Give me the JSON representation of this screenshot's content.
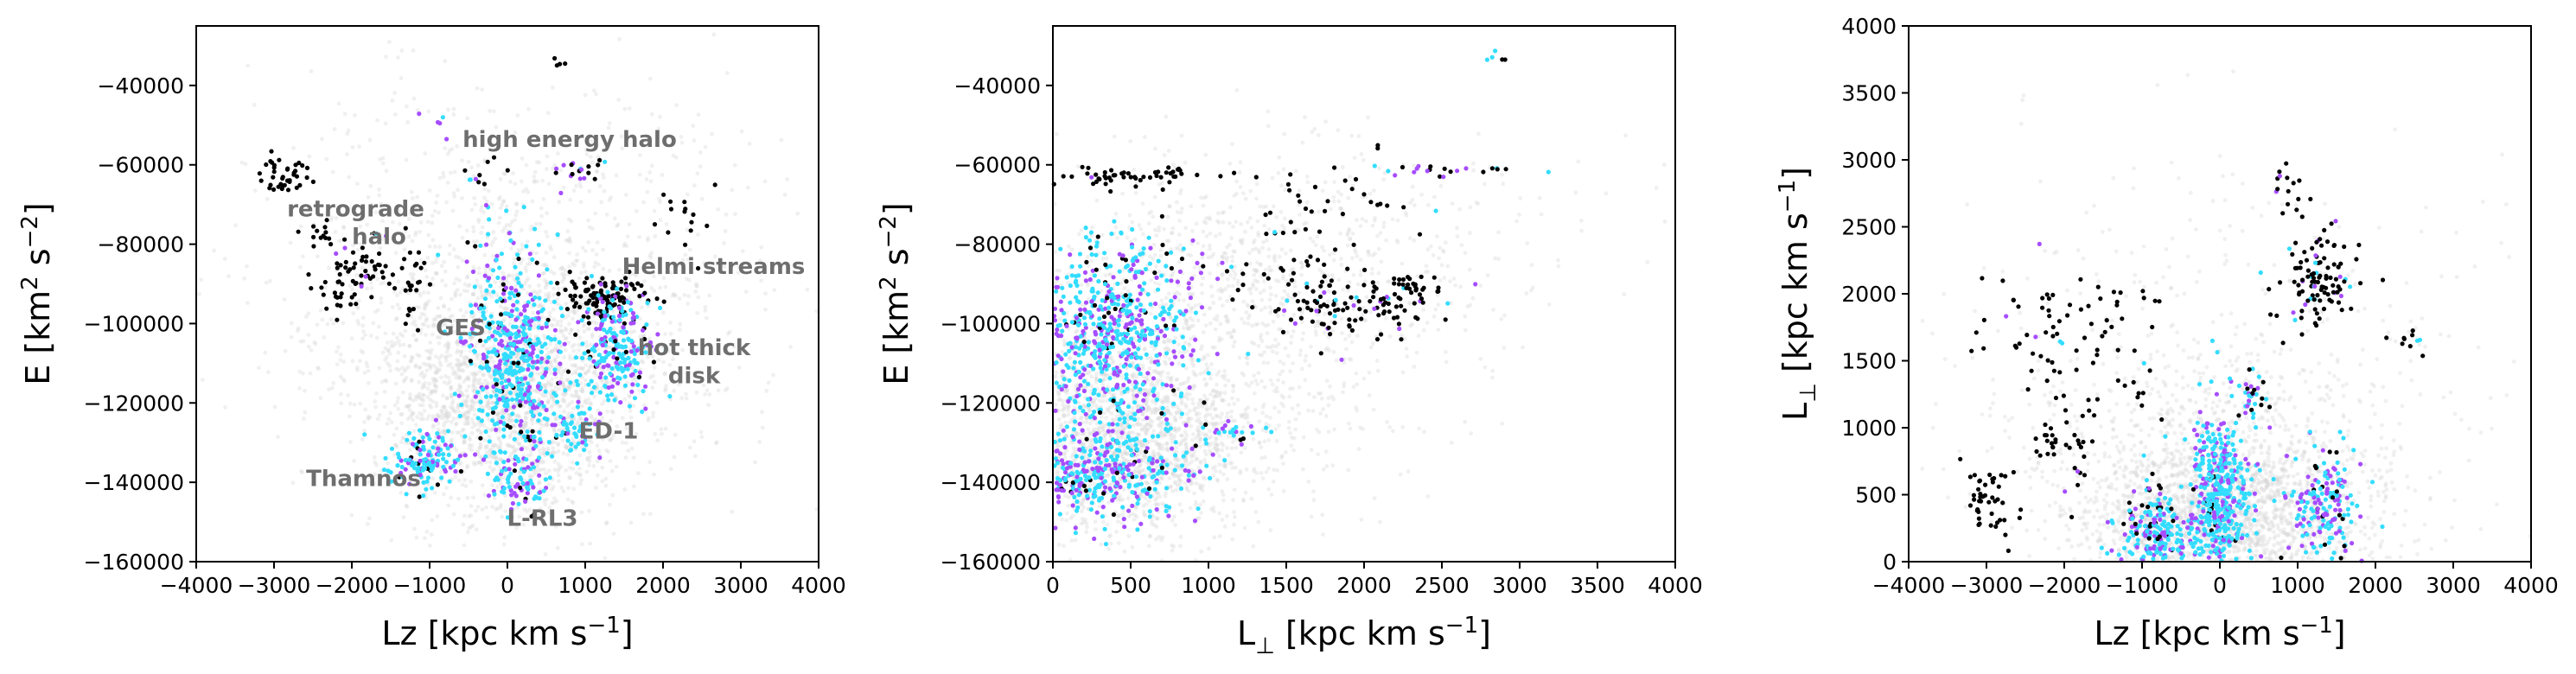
{
  "chart_data": [
    {
      "type": "scatter",
      "title": "",
      "xlabel": "Lz [kpc km s",
      "xlabel_sup": "−1",
      "xlabel_end": "]",
      "ylabel": "E [km",
      "ylabel_sup1": "2",
      "ylabel_mid": " s",
      "ylabel_sup2": "−2",
      "ylabel_end": "]",
      "xlim": [
        -4000,
        4000
      ],
      "ylim": [
        -160000,
        -25000
      ],
      "xticks": [
        -4000,
        -3000,
        -2000,
        -1000,
        0,
        1000,
        2000,
        3000,
        4000
      ],
      "xtick_labels": [
        "−4000",
        "−3000",
        "−2000",
        "−1000",
        "0",
        "1000",
        "2000",
        "3000",
        "4000"
      ],
      "yticks": [
        -160000,
        -140000,
        -120000,
        -100000,
        -80000,
        -60000,
        -40000
      ],
      "ytick_labels": [
        "−160000",
        "−140000",
        "−120000",
        "−100000",
        "−80000",
        "−60000",
        "−40000"
      ],
      "grid": false,
      "colors": {
        "background": "#d3d3d3",
        "black": "#000000",
        "cyan": "#33ddff",
        "purple": "#a64dff"
      },
      "annotations": [
        {
          "text": "high energy halo",
          "x": 800,
          "y": -55500
        },
        {
          "text": "retrograde",
          "x": -1950,
          "y": -73000
        },
        {
          "text": "halo",
          "x": -1650,
          "y": -80000
        },
        {
          "text": "Helmi streams",
          "x": 2650,
          "y": -87500
        },
        {
          "text": "GES",
          "x": -600,
          "y": -103000
        },
        {
          "text": "hot thick",
          "x": 2400,
          "y": -108000
        },
        {
          "text": "disk",
          "x": 2400,
          "y": -115000
        },
        {
          "text": "ED-1",
          "x": 1300,
          "y": -129000
        },
        {
          "text": "Thamnos",
          "x": -1850,
          "y": -141000
        },
        {
          "text": "L-RL3",
          "x": 450,
          "y": -151000
        }
      ],
      "background": [
        {
          "x": 0,
          "y": -120000,
          "sx": 800,
          "sy": 14000,
          "n": 1500
        },
        {
          "x": 0,
          "y": -100000,
          "sx": 1400,
          "sy": 20000,
          "n": 900
        },
        {
          "x": 0,
          "y": -80000,
          "sx": 1900,
          "sy": 22000,
          "n": 450
        }
      ],
      "groups": [
        {
          "x": -2850,
          "y": -63000,
          "sx": 200,
          "sy": 2500,
          "n": 40,
          "mix": [
            1,
            0,
            0
          ]
        },
        {
          "x": -2400,
          "y": -77000,
          "sx": 100,
          "sy": 2500,
          "n": 10,
          "mix": [
            1,
            0,
            0
          ]
        },
        {
          "x": -1800,
          "y": -87000,
          "sx": 300,
          "sy": 4000,
          "n": 65,
          "mix": [
            0.9,
            0.03,
            0.07
          ]
        },
        {
          "x": -2250,
          "y": -93000,
          "sx": 120,
          "sy": 3000,
          "n": 15,
          "mix": [
            1,
            0,
            0
          ]
        },
        {
          "x": -1250,
          "y": -92000,
          "sx": 150,
          "sy": 4000,
          "n": 15,
          "mix": [
            1,
            0,
            0
          ]
        },
        {
          "x": -1000,
          "y": -50000,
          "sx": 200,
          "sy": 2000,
          "n": 5,
          "mix": [
            0.4,
            0.3,
            0.3
          ]
        },
        {
          "x": -400,
          "y": -62000,
          "sx": 120,
          "sy": 3500,
          "n": 10,
          "mix": [
            0.8,
            0.1,
            0.1
          ]
        },
        {
          "x": 650,
          "y": -34000,
          "sx": 50,
          "sy": 1000,
          "n": 4,
          "mix": [
            0.75,
            0.25,
            0
          ]
        },
        {
          "x": 950,
          "y": -61000,
          "sx": 200,
          "sy": 2000,
          "n": 20,
          "mix": [
            0.6,
            0.1,
            0.3
          ]
        },
        {
          "x": 2250,
          "y": -74000,
          "sx": 300,
          "sy": 4000,
          "n": 15,
          "mix": [
            1,
            0,
            0
          ]
        },
        {
          "x": -300,
          "y": -77000,
          "sx": 100,
          "sy": 3000,
          "n": 4,
          "mix": [
            0.5,
            0.5,
            0
          ]
        },
        {
          "x": 100,
          "y": -108000,
          "sx": 300,
          "sy": 13000,
          "n": 500,
          "mix": [
            0.07,
            0.66,
            0.27
          ]
        },
        {
          "x": 1250,
          "y": -93000,
          "sx": 260,
          "sy": 3000,
          "n": 120,
          "mix": [
            0.9,
            0.05,
            0.05
          ]
        },
        {
          "x": 1400,
          "y": -106000,
          "sx": 250,
          "sy": 7000,
          "n": 220,
          "mix": [
            0.08,
            0.6,
            0.32
          ]
        },
        {
          "x": 900,
          "y": -127000,
          "sx": 150,
          "sy": 3000,
          "n": 50,
          "mix": [
            0.05,
            0.65,
            0.3
          ]
        },
        {
          "x": -1050,
          "y": -134000,
          "sx": 250,
          "sy": 3500,
          "n": 130,
          "mix": [
            0.1,
            0.6,
            0.3
          ]
        },
        {
          "x": 150,
          "y": -140000,
          "sx": 200,
          "sy": 4000,
          "n": 80,
          "mix": [
            0.05,
            0.65,
            0.3
          ]
        }
      ]
    },
    {
      "type": "scatter",
      "title": "",
      "xlabel": "L",
      "xlabel_sub": "⊥",
      "xlabel_rest": " [kpc km s",
      "xlabel_sup": "−1",
      "xlabel_end": "]",
      "ylabel": "E [km",
      "ylabel_sup1": "2",
      "ylabel_mid": " s",
      "ylabel_sup2": "−2",
      "ylabel_end": "]",
      "xlim": [
        0,
        4000
      ],
      "ylim": [
        -160000,
        -25000
      ],
      "xticks": [
        0,
        500,
        1000,
        1500,
        2000,
        2500,
        3000,
        3500,
        4000
      ],
      "xtick_labels": [
        "0",
        "500",
        "1000",
        "1500",
        "2000",
        "2500",
        "3000",
        "3500",
        "4000"
      ],
      "yticks": [
        -160000,
        -140000,
        -120000,
        -100000,
        -80000,
        -60000,
        -40000
      ],
      "ytick_labels": [
        "−160000",
        "−140000",
        "−120000",
        "−100000",
        "−80000",
        "−60000",
        "−40000"
      ],
      "grid": false,
      "colors": {
        "background": "#d3d3d3",
        "black": "#000000",
        "cyan": "#33ddff",
        "purple": "#a64dff"
      },
      "annotations": [],
      "background": [
        {
          "x": 450,
          "y": -130000,
          "sx": 450,
          "sy": 12000,
          "n": 1700
        },
        {
          "x": 1000,
          "y": -100000,
          "sx": 700,
          "sy": 18000,
          "n": 900
        },
        {
          "x": 1800,
          "y": -80000,
          "sx": 800,
          "sy": 14000,
          "n": 350
        }
      ],
      "groups": [
        {
          "x": 450,
          "y": -62500,
          "sx": 250,
          "sy": 1500,
          "n": 50,
          "mix": [
            1,
            0,
            0
          ]
        },
        {
          "x": 1600,
          "y": -70000,
          "sx": 350,
          "sy": 6000,
          "n": 45,
          "mix": [
            0.9,
            0.05,
            0.05
          ]
        },
        {
          "x": 1900,
          "y": -96000,
          "sx": 250,
          "sy": 4000,
          "n": 110,
          "mix": [
            0.9,
            0.05,
            0.05
          ]
        },
        {
          "x": 2350,
          "y": -91500,
          "sx": 100,
          "sy": 1500,
          "n": 25,
          "mix": [
            1,
            0,
            0
          ]
        },
        {
          "x": 1500,
          "y": -88000,
          "sx": 200,
          "sy": 3000,
          "n": 20,
          "mix": [
            0.85,
            0.15,
            0
          ]
        },
        {
          "x": 2500,
          "y": -61000,
          "sx": 300,
          "sy": 1000,
          "n": 20,
          "mix": [
            0.4,
            0.3,
            0.3
          ]
        },
        {
          "x": 2830,
          "y": -33000,
          "sx": 40,
          "sy": 800,
          "n": 5,
          "mix": [
            0.6,
            0.4,
            0
          ]
        },
        {
          "x": 600,
          "y": -85000,
          "sx": 250,
          "sy": 3000,
          "n": 40,
          "mix": [
            0.3,
            0.4,
            0.3
          ]
        },
        {
          "x": 350,
          "y": -105000,
          "sx": 280,
          "sy": 12000,
          "n": 650,
          "mix": [
            0.05,
            0.6,
            0.35
          ]
        },
        {
          "x": 300,
          "y": -138000,
          "sx": 300,
          "sy": 6000,
          "n": 380,
          "mix": [
            0.05,
            0.6,
            0.35
          ]
        },
        {
          "x": 1150,
          "y": -127000,
          "sx": 120,
          "sy": 1500,
          "n": 25,
          "mix": [
            0.1,
            0.5,
            0.4
          ]
        }
      ]
    },
    {
      "type": "scatter",
      "title": "",
      "xlabel": "Lz [kpc km s",
      "xlabel_sup": "−1",
      "xlabel_end": "]",
      "ylabel": "L",
      "ylabel_sub": "⊥",
      "ylabel_rest": " [kpc km s",
      "ylabel_sup": "−1",
      "ylabel_end": "]",
      "xlim": [
        -4000,
        4000
      ],
      "ylim": [
        0,
        4000
      ],
      "xticks": [
        -4000,
        -3000,
        -2000,
        -1000,
        0,
        1000,
        2000,
        3000,
        4000
      ],
      "xtick_labels": [
        "−4000",
        "−3000",
        "−2000",
        "−1000",
        "0",
        "1000",
        "2000",
        "3000",
        "4000"
      ],
      "yticks": [
        0,
        500,
        1000,
        1500,
        2000,
        2500,
        3000,
        3500,
        4000
      ],
      "ytick_labels": [
        "0",
        "500",
        "1000",
        "1500",
        "2000",
        "2500",
        "3000",
        "3500",
        "4000"
      ],
      "grid": false,
      "colors": {
        "background": "#d3d3d3",
        "black": "#000000",
        "cyan": "#33ddff",
        "purple": "#a64dff"
      },
      "annotations": [],
      "background": [
        {
          "x": 0,
          "y": 350,
          "sx": 900,
          "sy": 320,
          "n": 1800
        },
        {
          "x": 0,
          "y": 800,
          "sx": 1500,
          "sy": 600,
          "n": 700
        },
        {
          "x": 0,
          "y": 1500,
          "sx": 2000,
          "sy": 900,
          "n": 250
        }
      ],
      "groups": [
        {
          "x": -2950,
          "y": 480,
          "sx": 170,
          "sy": 150,
          "n": 45,
          "mix": [
            1,
            0,
            0
          ]
        },
        {
          "x": -2200,
          "y": 880,
          "sx": 120,
          "sy": 60,
          "n": 15,
          "mix": [
            1,
            0,
            0
          ]
        },
        {
          "x": -1850,
          "y": 1000,
          "sx": 150,
          "sy": 300,
          "n": 25,
          "mix": [
            0.85,
            0,
            0.15
          ]
        },
        {
          "x": -2300,
          "y": 1600,
          "sx": 400,
          "sy": 300,
          "n": 50,
          "mix": [
            0.9,
            0.03,
            0.07
          ]
        },
        {
          "x": -1400,
          "y": 1900,
          "sx": 250,
          "sy": 150,
          "n": 20,
          "mix": [
            1,
            0,
            0
          ]
        },
        {
          "x": -1050,
          "y": 1350,
          "sx": 120,
          "sy": 150,
          "n": 10,
          "mix": [
            0.8,
            0.2,
            0
          ]
        },
        {
          "x": 1250,
          "y": 2100,
          "sx": 250,
          "sy": 200,
          "n": 110,
          "mix": [
            0.85,
            0.05,
            0.1
          ]
        },
        {
          "x": 850,
          "y": 2750,
          "sx": 120,
          "sy": 100,
          "n": 15,
          "mix": [
            0.8,
            0,
            0.2
          ]
        },
        {
          "x": 2400,
          "y": 1650,
          "sx": 120,
          "sy": 80,
          "n": 10,
          "mix": [
            0.8,
            0.2,
            0
          ]
        },
        {
          "x": 0,
          "y": 450,
          "sx": 200,
          "sy": 320,
          "n": 500,
          "mix": [
            0.05,
            0.65,
            0.3
          ]
        },
        {
          "x": -800,
          "y": 200,
          "sx": 250,
          "sy": 140,
          "n": 200,
          "mix": [
            0.07,
            0.6,
            0.33
          ]
        },
        {
          "x": 1300,
          "y": 400,
          "sx": 250,
          "sy": 220,
          "n": 180,
          "mix": [
            0.1,
            0.55,
            0.35
          ]
        },
        {
          "x": -900,
          "y": 400,
          "sx": 150,
          "sy": 150,
          "n": 30,
          "mix": [
            0.4,
            0.4,
            0.2
          ]
        },
        {
          "x": 400,
          "y": 1250,
          "sx": 120,
          "sy": 100,
          "n": 30,
          "mix": [
            0.2,
            0.4,
            0.4
          ]
        }
      ]
    }
  ]
}
